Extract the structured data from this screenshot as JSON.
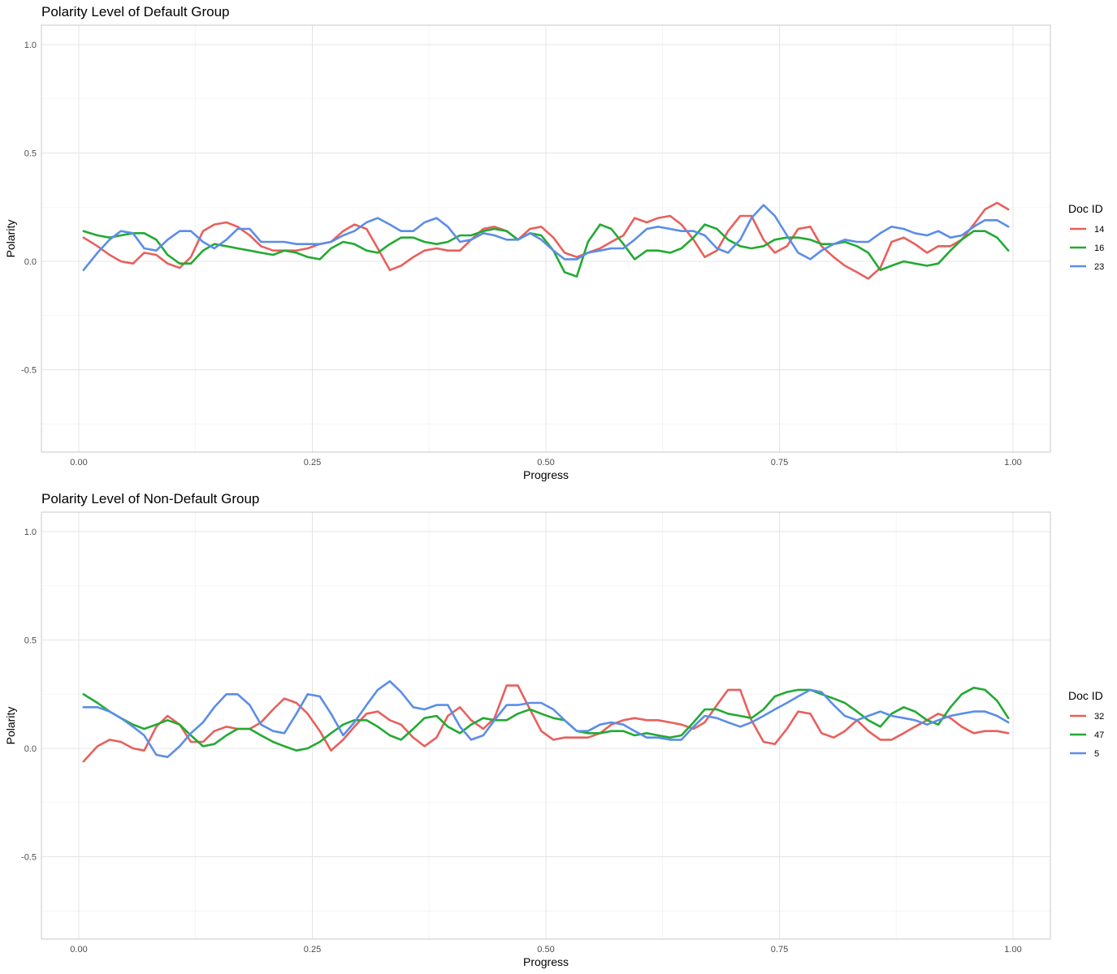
{
  "chart_data": [
    {
      "type": "line",
      "title": "Polarity Level of Default Group",
      "xlabel": "Progress",
      "ylabel": "Polarity",
      "xlim": [
        -0.04,
        1.04
      ],
      "ylim": [
        -0.88,
        1.09
      ],
      "x_ticks": [
        0.0,
        0.25,
        0.5,
        0.75,
        1.0
      ],
      "x_tick_labels": [
        "0.00",
        "0.25",
        "0.50",
        "0.75",
        "1.00"
      ],
      "y_ticks": [
        -0.5,
        0.0,
        0.5,
        1.0
      ],
      "y_tick_labels": [
        "-0.5",
        "0.0",
        "0.5",
        "1.0"
      ],
      "grid": true,
      "legend_title": "Doc ID",
      "legend_position": "right",
      "series": [
        {
          "name": "14",
          "color": "#e8605c",
          "x": [
            0.005,
            0.02,
            0.033,
            0.045,
            0.058,
            0.07,
            0.083,
            0.095,
            0.108,
            0.12,
            0.133,
            0.145,
            0.158,
            0.17,
            0.183,
            0.195,
            0.208,
            0.22,
            0.233,
            0.245,
            0.258,
            0.27,
            0.283,
            0.295,
            0.308,
            0.32,
            0.333,
            0.345,
            0.358,
            0.37,
            0.383,
            0.395,
            0.408,
            0.42,
            0.433,
            0.445,
            0.458,
            0.47,
            0.483,
            0.495,
            0.508,
            0.52,
            0.533,
            0.545,
            0.558,
            0.57,
            0.583,
            0.595,
            0.608,
            0.62,
            0.633,
            0.645,
            0.658,
            0.67,
            0.683,
            0.695,
            0.708,
            0.72,
            0.733,
            0.745,
            0.758,
            0.77,
            0.783,
            0.795,
            0.808,
            0.82,
            0.833,
            0.845,
            0.858,
            0.87,
            0.883,
            0.895,
            0.908,
            0.92,
            0.933,
            0.945,
            0.958,
            0.97,
            0.983,
            0.995
          ],
          "y": [
            0.11,
            0.07,
            0.03,
            0.0,
            -0.01,
            0.04,
            0.03,
            -0.01,
            -0.03,
            0.02,
            0.14,
            0.17,
            0.18,
            0.16,
            0.12,
            0.07,
            0.05,
            0.05,
            0.05,
            0.06,
            0.08,
            0.09,
            0.14,
            0.17,
            0.15,
            0.06,
            -0.04,
            -0.02,
            0.02,
            0.05,
            0.06,
            0.05,
            0.05,
            0.1,
            0.15,
            0.16,
            0.14,
            0.1,
            0.15,
            0.16,
            0.11,
            0.04,
            0.02,
            0.04,
            0.06,
            0.09,
            0.12,
            0.2,
            0.18,
            0.2,
            0.21,
            0.17,
            0.1,
            0.02,
            0.05,
            0.14,
            0.21,
            0.21,
            0.1,
            0.04,
            0.07,
            0.15,
            0.16,
            0.07,
            0.02,
            -0.02,
            -0.05,
            -0.08,
            -0.03,
            0.09,
            0.11,
            0.08,
            0.04,
            0.07,
            0.07,
            0.1,
            0.17,
            0.24,
            0.27,
            0.24
          ]
        },
        {
          "name": "16",
          "color": "#22aa33",
          "x": [
            0.005,
            0.02,
            0.033,
            0.045,
            0.058,
            0.07,
            0.083,
            0.095,
            0.108,
            0.12,
            0.133,
            0.145,
            0.158,
            0.17,
            0.183,
            0.195,
            0.208,
            0.22,
            0.233,
            0.245,
            0.258,
            0.27,
            0.283,
            0.295,
            0.308,
            0.32,
            0.333,
            0.345,
            0.358,
            0.37,
            0.383,
            0.395,
            0.408,
            0.42,
            0.433,
            0.445,
            0.458,
            0.47,
            0.483,
            0.495,
            0.508,
            0.52,
            0.533,
            0.545,
            0.558,
            0.57,
            0.583,
            0.595,
            0.608,
            0.62,
            0.633,
            0.645,
            0.658,
            0.67,
            0.683,
            0.695,
            0.708,
            0.72,
            0.733,
            0.745,
            0.758,
            0.77,
            0.783,
            0.795,
            0.808,
            0.82,
            0.833,
            0.845,
            0.858,
            0.87,
            0.883,
            0.895,
            0.908,
            0.92,
            0.933,
            0.945,
            0.958,
            0.97,
            0.983,
            0.995
          ],
          "y": [
            0.14,
            0.12,
            0.11,
            0.12,
            0.13,
            0.13,
            0.1,
            0.03,
            -0.01,
            -0.01,
            0.05,
            0.08,
            0.07,
            0.06,
            0.05,
            0.04,
            0.03,
            0.05,
            0.04,
            0.02,
            0.01,
            0.06,
            0.09,
            0.08,
            0.05,
            0.04,
            0.08,
            0.11,
            0.11,
            0.09,
            0.08,
            0.09,
            0.12,
            0.12,
            0.14,
            0.15,
            0.14,
            0.1,
            0.13,
            0.12,
            0.05,
            -0.05,
            -0.07,
            0.09,
            0.17,
            0.15,
            0.08,
            0.01,
            0.05,
            0.05,
            0.04,
            0.06,
            0.11,
            0.17,
            0.15,
            0.1,
            0.07,
            0.06,
            0.07,
            0.1,
            0.11,
            0.11,
            0.1,
            0.08,
            0.08,
            0.09,
            0.07,
            0.04,
            -0.04,
            -0.02,
            0.0,
            -0.01,
            -0.02,
            -0.01,
            0.05,
            0.1,
            0.14,
            0.14,
            0.11,
            0.05
          ]
        },
        {
          "name": "23",
          "color": "#5b8de8",
          "x": [
            0.005,
            0.02,
            0.033,
            0.045,
            0.058,
            0.07,
            0.083,
            0.095,
            0.108,
            0.12,
            0.133,
            0.145,
            0.158,
            0.17,
            0.183,
            0.195,
            0.208,
            0.22,
            0.233,
            0.245,
            0.258,
            0.27,
            0.283,
            0.295,
            0.308,
            0.32,
            0.333,
            0.345,
            0.358,
            0.37,
            0.383,
            0.395,
            0.408,
            0.42,
            0.433,
            0.445,
            0.458,
            0.47,
            0.483,
            0.495,
            0.508,
            0.52,
            0.533,
            0.545,
            0.558,
            0.57,
            0.583,
            0.595,
            0.608,
            0.62,
            0.633,
            0.645,
            0.658,
            0.67,
            0.683,
            0.695,
            0.708,
            0.72,
            0.733,
            0.745,
            0.758,
            0.77,
            0.783,
            0.795,
            0.808,
            0.82,
            0.833,
            0.845,
            0.858,
            0.87,
            0.883,
            0.895,
            0.908,
            0.92,
            0.933,
            0.945,
            0.958,
            0.97,
            0.983,
            0.995
          ],
          "y": [
            -0.04,
            0.04,
            0.1,
            0.14,
            0.13,
            0.06,
            0.05,
            0.1,
            0.14,
            0.14,
            0.09,
            0.06,
            0.1,
            0.15,
            0.15,
            0.09,
            0.09,
            0.09,
            0.08,
            0.08,
            0.08,
            0.09,
            0.12,
            0.14,
            0.18,
            0.2,
            0.17,
            0.14,
            0.14,
            0.18,
            0.2,
            0.16,
            0.09,
            0.1,
            0.13,
            0.12,
            0.1,
            0.1,
            0.13,
            0.1,
            0.05,
            0.01,
            0.01,
            0.04,
            0.05,
            0.06,
            0.06,
            0.1,
            0.15,
            0.16,
            0.15,
            0.14,
            0.14,
            0.12,
            0.06,
            0.04,
            0.1,
            0.2,
            0.26,
            0.21,
            0.12,
            0.04,
            0.01,
            0.05,
            0.08,
            0.1,
            0.09,
            0.09,
            0.13,
            0.16,
            0.15,
            0.13,
            0.12,
            0.14,
            0.11,
            0.12,
            0.16,
            0.19,
            0.19,
            0.16
          ]
        }
      ]
    },
    {
      "type": "line",
      "title": "Polarity Level of Non-Default Group",
      "xlabel": "Progress",
      "ylabel": "Polarity",
      "xlim": [
        -0.04,
        1.04
      ],
      "ylim": [
        -0.88,
        1.09
      ],
      "x_ticks": [
        0.0,
        0.25,
        0.5,
        0.75,
        1.0
      ],
      "x_tick_labels": [
        "0.00",
        "0.25",
        "0.50",
        "0.75",
        "1.00"
      ],
      "y_ticks": [
        -0.5,
        0.0,
        0.5,
        1.0
      ],
      "y_tick_labels": [
        "-0.5",
        "0.0",
        "0.5",
        "1.0"
      ],
      "grid": true,
      "legend_title": "Doc ID",
      "legend_position": "right",
      "series": [
        {
          "name": "32",
          "color": "#e8605c",
          "x": [
            0.005,
            0.02,
            0.033,
            0.045,
            0.058,
            0.07,
            0.083,
            0.095,
            0.108,
            0.12,
            0.133,
            0.145,
            0.158,
            0.17,
            0.183,
            0.195,
            0.208,
            0.22,
            0.233,
            0.245,
            0.258,
            0.27,
            0.283,
            0.295,
            0.308,
            0.32,
            0.333,
            0.345,
            0.358,
            0.37,
            0.383,
            0.395,
            0.408,
            0.42,
            0.433,
            0.445,
            0.458,
            0.47,
            0.483,
            0.495,
            0.508,
            0.52,
            0.533,
            0.545,
            0.558,
            0.57,
            0.583,
            0.595,
            0.608,
            0.62,
            0.633,
            0.645,
            0.658,
            0.67,
            0.683,
            0.695,
            0.708,
            0.72,
            0.733,
            0.745,
            0.758,
            0.77,
            0.783,
            0.795,
            0.808,
            0.82,
            0.833,
            0.845,
            0.858,
            0.87,
            0.883,
            0.895,
            0.908,
            0.92,
            0.933,
            0.945,
            0.958,
            0.97,
            0.983,
            0.995
          ],
          "y": [
            -0.06,
            0.01,
            0.04,
            0.03,
            0.0,
            -0.01,
            0.1,
            0.15,
            0.11,
            0.03,
            0.03,
            0.08,
            0.1,
            0.09,
            0.09,
            0.12,
            0.18,
            0.23,
            0.21,
            0.16,
            0.08,
            -0.01,
            0.04,
            0.1,
            0.16,
            0.17,
            0.13,
            0.11,
            0.05,
            0.01,
            0.05,
            0.15,
            0.19,
            0.13,
            0.09,
            0.14,
            0.29,
            0.29,
            0.18,
            0.08,
            0.04,
            0.05,
            0.05,
            0.05,
            0.07,
            0.11,
            0.13,
            0.14,
            0.13,
            0.13,
            0.12,
            0.11,
            0.09,
            0.12,
            0.2,
            0.27,
            0.27,
            0.13,
            0.03,
            0.02,
            0.09,
            0.17,
            0.16,
            0.07,
            0.05,
            0.08,
            0.13,
            0.08,
            0.04,
            0.04,
            0.07,
            0.1,
            0.13,
            0.16,
            0.14,
            0.1,
            0.07,
            0.08,
            0.08,
            0.07
          ]
        },
        {
          "name": "47",
          "color": "#22aa33",
          "x": [
            0.005,
            0.02,
            0.033,
            0.045,
            0.058,
            0.07,
            0.083,
            0.095,
            0.108,
            0.12,
            0.133,
            0.145,
            0.158,
            0.17,
            0.183,
            0.195,
            0.208,
            0.22,
            0.233,
            0.245,
            0.258,
            0.27,
            0.283,
            0.295,
            0.308,
            0.32,
            0.333,
            0.345,
            0.358,
            0.37,
            0.383,
            0.395,
            0.408,
            0.42,
            0.433,
            0.445,
            0.458,
            0.47,
            0.483,
            0.495,
            0.508,
            0.52,
            0.533,
            0.545,
            0.558,
            0.57,
            0.583,
            0.595,
            0.608,
            0.62,
            0.633,
            0.645,
            0.658,
            0.67,
            0.683,
            0.695,
            0.708,
            0.72,
            0.733,
            0.745,
            0.758,
            0.77,
            0.783,
            0.795,
            0.808,
            0.82,
            0.833,
            0.845,
            0.858,
            0.87,
            0.883,
            0.895,
            0.908,
            0.92,
            0.933,
            0.945,
            0.958,
            0.97,
            0.983,
            0.995
          ],
          "y": [
            0.25,
            0.21,
            0.17,
            0.14,
            0.11,
            0.09,
            0.11,
            0.13,
            0.11,
            0.06,
            0.01,
            0.02,
            0.06,
            0.09,
            0.09,
            0.06,
            0.03,
            0.01,
            -0.01,
            0.0,
            0.03,
            0.07,
            0.11,
            0.13,
            0.13,
            0.1,
            0.06,
            0.04,
            0.09,
            0.14,
            0.15,
            0.1,
            0.07,
            0.11,
            0.14,
            0.13,
            0.13,
            0.16,
            0.18,
            0.16,
            0.14,
            0.13,
            0.08,
            0.07,
            0.07,
            0.08,
            0.08,
            0.06,
            0.07,
            0.06,
            0.05,
            0.06,
            0.12,
            0.18,
            0.18,
            0.16,
            0.15,
            0.14,
            0.18,
            0.24,
            0.26,
            0.27,
            0.27,
            0.25,
            0.23,
            0.21,
            0.17,
            0.13,
            0.1,
            0.16,
            0.19,
            0.17,
            0.13,
            0.11,
            0.19,
            0.25,
            0.28,
            0.27,
            0.22,
            0.14
          ]
        },
        {
          "name": "5",
          "color": "#5b8de8",
          "x": [
            0.005,
            0.02,
            0.033,
            0.045,
            0.058,
            0.07,
            0.083,
            0.095,
            0.108,
            0.12,
            0.133,
            0.145,
            0.158,
            0.17,
            0.183,
            0.195,
            0.208,
            0.22,
            0.233,
            0.245,
            0.258,
            0.27,
            0.283,
            0.295,
            0.308,
            0.32,
            0.333,
            0.345,
            0.358,
            0.37,
            0.383,
            0.395,
            0.408,
            0.42,
            0.433,
            0.445,
            0.458,
            0.47,
            0.483,
            0.495,
            0.508,
            0.52,
            0.533,
            0.545,
            0.558,
            0.57,
            0.583,
            0.595,
            0.608,
            0.62,
            0.633,
            0.645,
            0.658,
            0.67,
            0.683,
            0.695,
            0.708,
            0.72,
            0.733,
            0.745,
            0.758,
            0.77,
            0.783,
            0.795,
            0.808,
            0.82,
            0.833,
            0.845,
            0.858,
            0.87,
            0.883,
            0.895,
            0.908,
            0.92,
            0.933,
            0.945,
            0.958,
            0.97,
            0.983,
            0.995
          ],
          "y": [
            0.19,
            0.19,
            0.17,
            0.14,
            0.1,
            0.06,
            -0.03,
            -0.04,
            0.01,
            0.07,
            0.12,
            0.19,
            0.25,
            0.25,
            0.2,
            0.11,
            0.08,
            0.07,
            0.16,
            0.25,
            0.24,
            0.16,
            0.06,
            0.12,
            0.2,
            0.27,
            0.31,
            0.26,
            0.19,
            0.18,
            0.2,
            0.2,
            0.1,
            0.04,
            0.06,
            0.13,
            0.2,
            0.2,
            0.21,
            0.21,
            0.18,
            0.13,
            0.08,
            0.08,
            0.11,
            0.12,
            0.11,
            0.08,
            0.05,
            0.05,
            0.04,
            0.04,
            0.1,
            0.15,
            0.14,
            0.12,
            0.1,
            0.12,
            0.15,
            0.18,
            0.21,
            0.24,
            0.27,
            0.26,
            0.2,
            0.15,
            0.13,
            0.15,
            0.17,
            0.15,
            0.14,
            0.13,
            0.11,
            0.13,
            0.15,
            0.16,
            0.17,
            0.17,
            0.15,
            0.12
          ]
        }
      ]
    }
  ]
}
